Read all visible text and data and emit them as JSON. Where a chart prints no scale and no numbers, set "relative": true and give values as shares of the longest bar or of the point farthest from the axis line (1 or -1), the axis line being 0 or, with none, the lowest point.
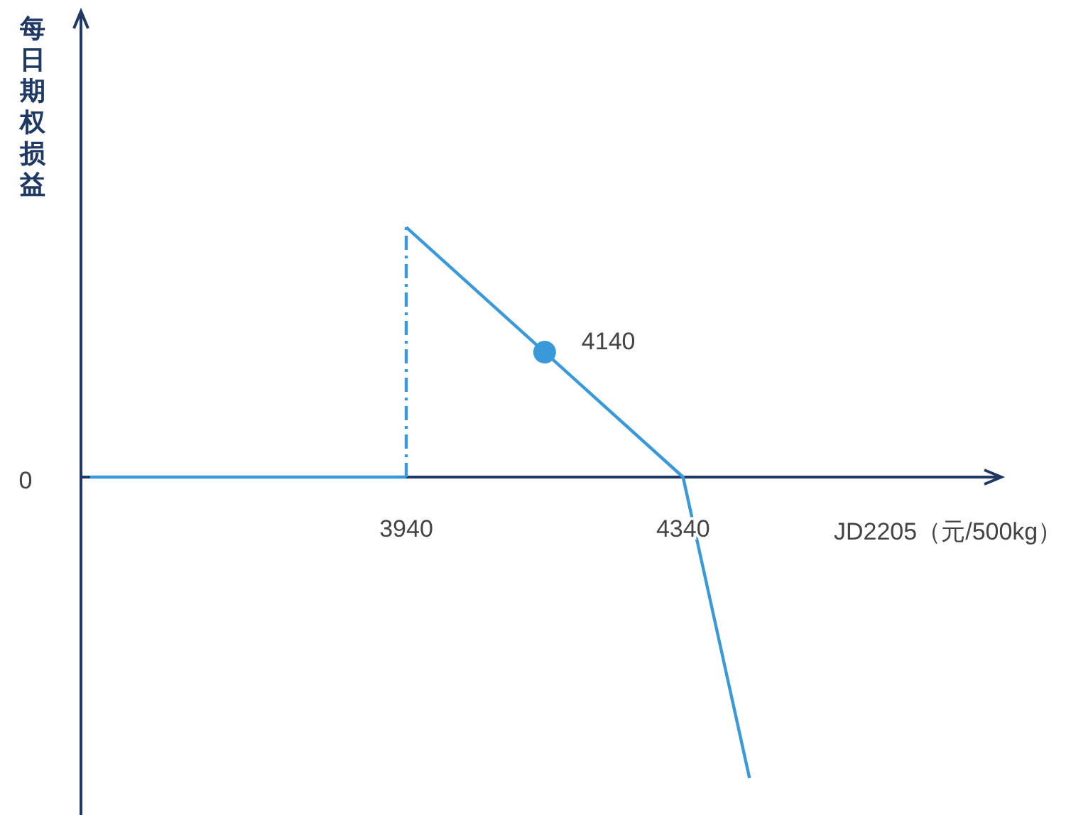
{
  "chart_data": {
    "type": "line",
    "relative": true,
    "xlabel": "JD2205（元/500kg）",
    "ylabel": "每日期权损益",
    "xlim": [
      3470,
      4800
    ],
    "xticks": [
      3940,
      4340
    ],
    "series": [
      {
        "type": "line",
        "color": "#3a9ad9",
        "line_style": "solid",
        "x": [
          3483,
          3940
        ],
        "values": [
          0,
          0
        ]
      },
      {
        "type": "line",
        "color": "#3a9ad9",
        "line_style": "dashed",
        "x": [
          3940,
          3940
        ],
        "values": [
          0,
          0.83
        ]
      },
      {
        "type": "line",
        "color": "#3a9ad9",
        "line_style": "solid",
        "x": [
          3940,
          4340,
          4436
        ],
        "values": [
          0.83,
          0,
          -1
        ]
      },
      {
        "type": "scatter",
        "color": "#3a9ad9",
        "marker": "circle",
        "x": [
          4140
        ],
        "values": [
          0.415
        ]
      }
    ],
    "annotations": [
      {
        "text": "4140",
        "x": 4140,
        "y": 0.415
      },
      "0"
    ]
  }
}
